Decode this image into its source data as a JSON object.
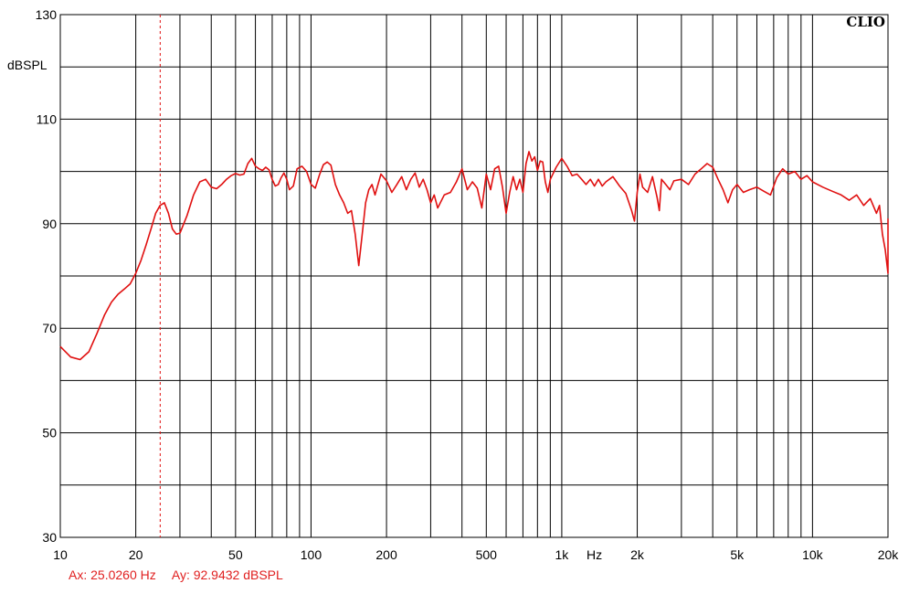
{
  "chart_data": {
    "type": "line",
    "x_scale": "log",
    "xlim": [
      10,
      20000
    ],
    "ylim": [
      30,
      130
    ],
    "ylabel": "dBSPL",
    "xunit": "Hz",
    "grid": true,
    "logo": "CLIO",
    "y_ticks": [
      {
        "value": 130,
        "label": "130"
      },
      {
        "value": 110,
        "label": "110"
      },
      {
        "value": 90,
        "label": "90"
      },
      {
        "value": 70,
        "label": "70"
      },
      {
        "value": 50,
        "label": "50"
      },
      {
        "value": 30,
        "label": "30"
      }
    ],
    "y_gridlines": [
      30,
      40,
      50,
      60,
      70,
      80,
      90,
      100,
      110,
      120,
      130
    ],
    "x_ticks": [
      {
        "value": 10,
        "label": "10"
      },
      {
        "value": 20,
        "label": "20"
      },
      {
        "value": 50,
        "label": "50"
      },
      {
        "value": 100,
        "label": "100"
      },
      {
        "value": 200,
        "label": "200"
      },
      {
        "value": 500,
        "label": "500"
      },
      {
        "value": 1000,
        "label": "1k"
      },
      {
        "value": 2000,
        "label": "2k"
      },
      {
        "value": 5000,
        "label": "5k"
      },
      {
        "value": 10000,
        "label": "10k"
      },
      {
        "value": 20000,
        "label": "20k"
      }
    ],
    "series": [
      {
        "color": "#e01010",
        "x": [
          10,
          11,
          12,
          13,
          14,
          15,
          16,
          17,
          18,
          19,
          20,
          21,
          22,
          23,
          24,
          25,
          26,
          27,
          28,
          29,
          30,
          32,
          34,
          36,
          38,
          40,
          42,
          44,
          46,
          48,
          50,
          52,
          54,
          56,
          58,
          60,
          62,
          64,
          66,
          68,
          70,
          72,
          74,
          76,
          78,
          80,
          82,
          85,
          88,
          92,
          96,
          100,
          104,
          108,
          112,
          116,
          120,
          125,
          130,
          135,
          140,
          145,
          150,
          155,
          160,
          165,
          170,
          175,
          180,
          190,
          200,
          210,
          220,
          230,
          240,
          250,
          260,
          270,
          280,
          290,
          300,
          310,
          320,
          340,
          360,
          380,
          400,
          420,
          440,
          460,
          480,
          500,
          520,
          540,
          560,
          580,
          600,
          620,
          640,
          660,
          680,
          700,
          720,
          740,
          760,
          780,
          800,
          820,
          840,
          860,
          880,
          900,
          950,
          1000,
          1050,
          1100,
          1150,
          1200,
          1250,
          1300,
          1350,
          1400,
          1450,
          1500,
          1600,
          1700,
          1800,
          1900,
          1950,
          2000,
          2050,
          2100,
          2200,
          2300,
          2400,
          2450,
          2500,
          2600,
          2700,
          2800,
          3000,
          3200,
          3400,
          3600,
          3800,
          4000,
          4200,
          4400,
          4600,
          4800,
          5000,
          5300,
          5600,
          6000,
          6400,
          6800,
          7200,
          7600,
          8000,
          8500,
          9000,
          9500,
          10000,
          11000,
          12000,
          13000,
          14000,
          15000,
          16000,
          17000,
          18000,
          18500,
          19000,
          19500,
          20000,
          20500,
          21000
        ],
        "y": [
          66.5,
          64.5,
          64.0,
          65.5,
          69,
          72.5,
          75,
          76.5,
          77.5,
          78.5,
          80.5,
          83,
          86,
          89,
          92,
          93.5,
          94,
          92,
          89,
          88,
          88.2,
          91.5,
          95.5,
          98,
          98.5,
          97,
          96.7,
          97.5,
          98.5,
          99.2,
          99.6,
          99.3,
          99.5,
          101.5,
          102.5,
          101.0,
          100.5,
          100.2,
          100.8,
          100.3,
          98.5,
          97.2,
          97.5,
          98.8,
          99.7,
          98.5,
          96.5,
          97.2,
          100.5,
          101.0,
          100.0,
          97.5,
          96.8,
          99.3,
          101.3,
          101.8,
          101.2,
          97.5,
          95.5,
          94.0,
          92.0,
          92.5,
          88.0,
          82.0,
          88.0,
          94.0,
          96.5,
          97.5,
          95.5,
          99.5,
          98.2,
          96.0,
          97.5,
          99.0,
          96.5,
          98.5,
          99.7,
          97.0,
          98.5,
          96.5,
          94.0,
          95.5,
          93.0,
          95.5,
          96.0,
          98.0,
          100.5,
          96.5,
          98.0,
          96.8,
          93.0,
          99.5,
          96.5,
          100.5,
          101.0,
          97.0,
          92.0,
          96.0,
          99.0,
          96.5,
          98.5,
          96.0,
          101.5,
          103.8,
          102.0,
          102.8,
          100.2,
          102.0,
          101.8,
          98.0,
          96.0,
          98.5,
          100.8,
          102.5,
          101.0,
          99.2,
          99.5,
          98.5,
          97.5,
          98.5,
          97.2,
          98.5,
          97.2,
          98.0,
          99.0,
          97.2,
          95.8,
          92.5,
          90.5,
          96.0,
          99.5,
          97.0,
          96.0,
          99.0,
          95.0,
          92.5,
          98.5,
          97.5,
          96.5,
          98.2,
          98.5,
          97.5,
          99.5,
          100.5,
          101.5,
          100.8,
          98.5,
          96.5,
          94.0,
          96.5,
          97.5,
          96.0,
          96.5,
          97.0,
          96.2,
          95.5,
          98.8,
          100.5,
          99.5,
          100.0,
          98.5,
          99.2,
          98.0,
          97.0,
          96.2,
          95.5,
          94.5,
          95.5,
          93.5,
          94.8,
          92.0,
          93.5,
          88.0,
          85.0,
          80.5,
          84.0,
          91.0
        ]
      }
    ],
    "cursor": {
      "x": 25.026,
      "ax_label": "Ax: 25.0260 Hz",
      "ay_label": "Ay: 92.9432 dBSPL"
    }
  }
}
